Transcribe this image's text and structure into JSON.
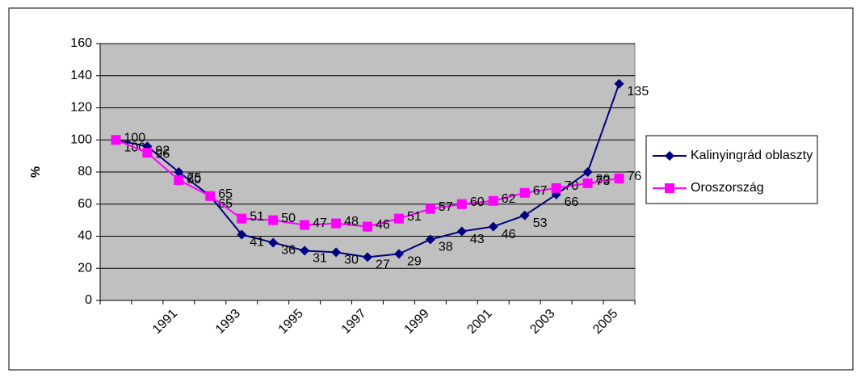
{
  "chart_data": {
    "type": "line",
    "ylabel": "%",
    "categories": [
      null,
      null,
      "1991",
      null,
      "1993",
      null,
      "1995",
      null,
      "1997",
      null,
      "1999",
      null,
      "2001",
      null,
      "2003",
      null,
      "2005"
    ],
    "series": [
      {
        "name": "Kalinyingrád oblaszty",
        "color": "#000080",
        "marker": "diamond",
        "values": [
          100,
          96,
          80,
          65,
          41,
          36,
          31,
          30,
          27,
          29,
          38,
          43,
          46,
          53,
          66,
          80,
          135
        ]
      },
      {
        "name": "Oroszország",
        "color": "#ff00ff",
        "marker": "square",
        "values": [
          100,
          92,
          75,
          65,
          51,
          50,
          47,
          48,
          46,
          51,
          57,
          60,
          62,
          67,
          70,
          73,
          76
        ]
      }
    ],
    "ylim": [
      0,
      160
    ],
    "yticks": [
      0,
      20,
      40,
      60,
      80,
      100,
      120,
      140,
      160
    ],
    "grid": true,
    "plot_background": "#c0c0c0",
    "legend": "right"
  }
}
